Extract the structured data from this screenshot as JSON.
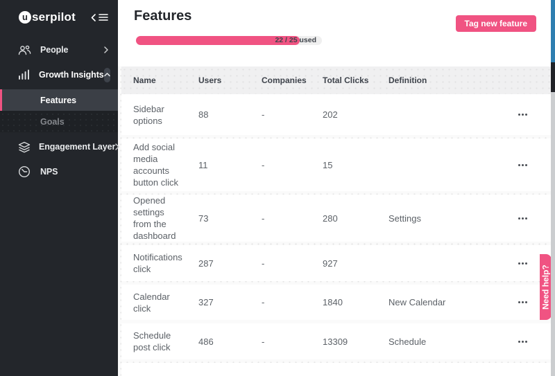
{
  "brand": {
    "logo_first": "u",
    "logo_rest": "serpilot"
  },
  "colors": {
    "brand_pink": "#f05382",
    "sidebar_bg": "#23262b",
    "submenu_bg": "#1e2125",
    "active_item_bg": "#3b3f46",
    "scrollbar_blue": "#2e7eb0"
  },
  "sidebar": {
    "items": [
      {
        "label": "People",
        "icon": "people-icon"
      },
      {
        "label": "Growth Insights",
        "icon": "bar-chart-icon",
        "expanded": true
      },
      {
        "label": "Features",
        "active": true
      },
      {
        "label": "Goals"
      },
      {
        "label": "Engagement Layer",
        "icon": "layers-icon"
      },
      {
        "label": "NPS",
        "icon": "gauge-icon"
      }
    ]
  },
  "header": {
    "title": "Features",
    "usage_label": "22 / 25 used",
    "usage_percent": 88,
    "tag_button_label": "Tag new feature"
  },
  "table": {
    "columns": [
      "Name",
      "Users",
      "Companies",
      "Total Clicks",
      "Definition"
    ],
    "rows": [
      {
        "name": "Sidebar options",
        "users": "88",
        "companies": "-",
        "total_clicks": "202",
        "definition": ""
      },
      {
        "name": "Add social media accounts button click",
        "users": "11",
        "companies": "-",
        "total_clicks": "15",
        "definition": ""
      },
      {
        "name": "Opened settings from the dashboard",
        "users": "73",
        "companies": "-",
        "total_clicks": "280",
        "definition": "Settings"
      },
      {
        "name": "Notifications click",
        "users": "287",
        "companies": "-",
        "total_clicks": "927",
        "definition": ""
      },
      {
        "name": "Calendar click",
        "users": "327",
        "companies": "-",
        "total_clicks": "1840",
        "definition": "New Calendar"
      },
      {
        "name": "Schedule post click",
        "users": "486",
        "companies": "-",
        "total_clicks": "13309",
        "definition": "Schedule"
      }
    ]
  },
  "help_tab": {
    "label": "Need help?"
  }
}
